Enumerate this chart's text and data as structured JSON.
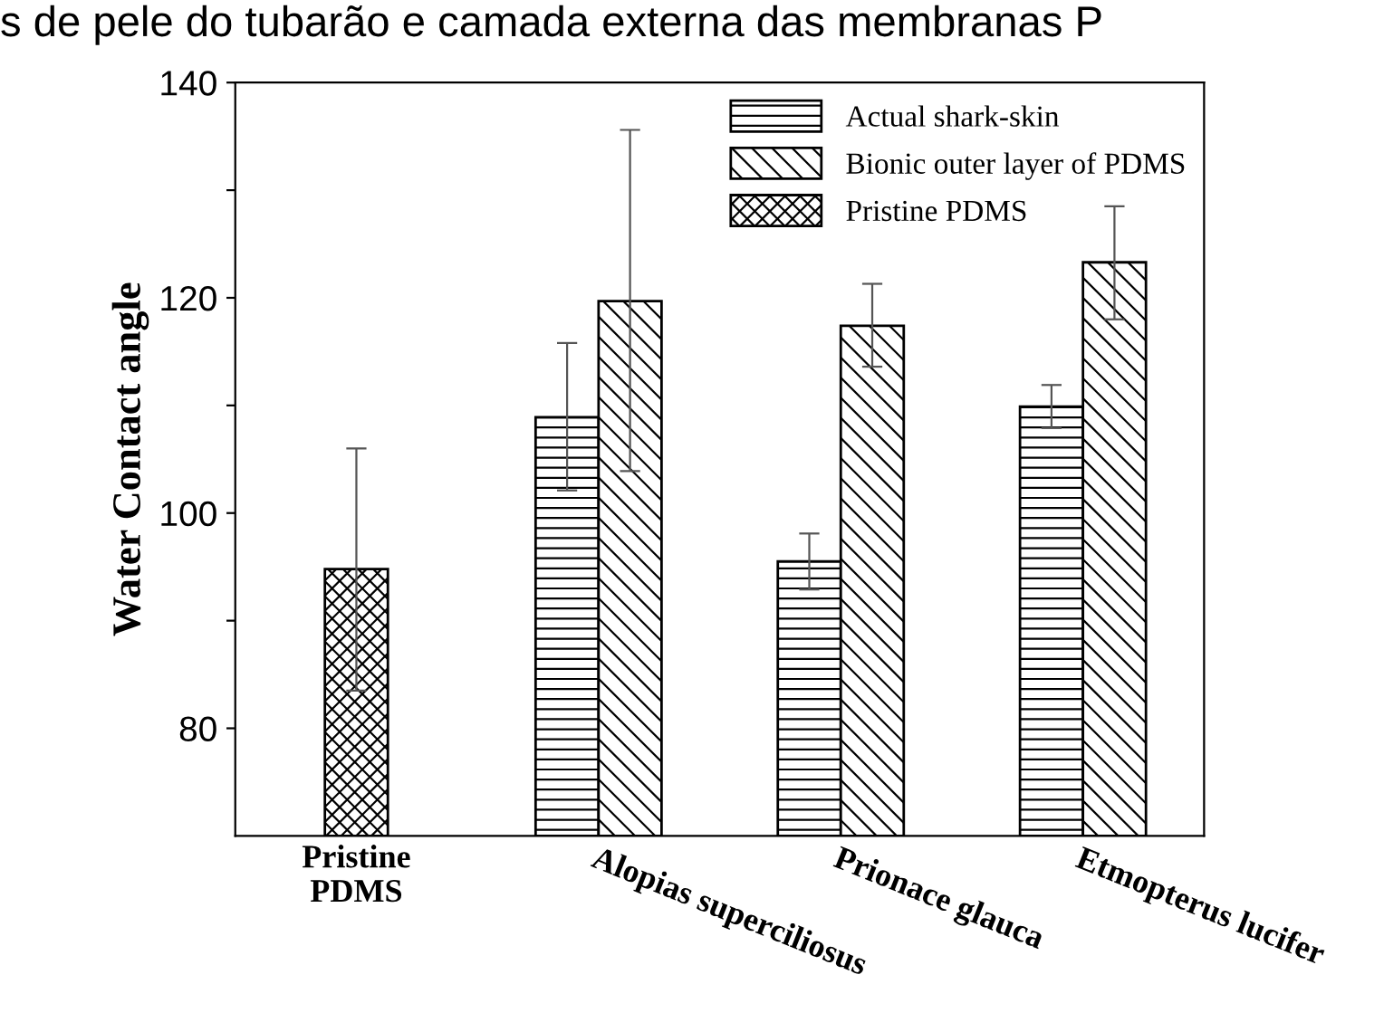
{
  "chart_data": {
    "type": "bar",
    "title": "s de pele do tubarão e camada externa das membranas P",
    "ylabel": "Water Contact angle",
    "categories": [
      "Pristine\nPDMS",
      "Alopias superciliosus",
      "Prionace glauca",
      "Etmopterus lucifer"
    ],
    "series": [
      {
        "name": "Actual shark-skin",
        "color": "#000000",
        "values": [
          null,
          108.9,
          95.5,
          109.9
        ],
        "errors": [
          null,
          [
            102.1,
            115.8
          ],
          [
            92.9,
            98.1
          ],
          [
            107.9,
            111.9
          ]
        ]
      },
      {
        "name": "Bionic outer layer of PDMS",
        "color": "#000000",
        "values": [
          null,
          119.7,
          117.4,
          123.3
        ],
        "errors": [
          null,
          [
            103.9,
            135.6
          ],
          [
            113.6,
            121.3
          ],
          [
            118.0,
            128.5
          ]
        ]
      },
      {
        "name": "Pristine PDMS",
        "color": "#000000",
        "values": [
          94.8,
          null,
          null,
          null
        ],
        "errors": [
          [
            83.5,
            106.0
          ],
          null,
          null,
          null
        ]
      }
    ],
    "ylim": [
      70,
      140
    ],
    "yticks": [
      80,
      {
        "value": 90,
        "label": null
      },
      100,
      {
        "value": 110,
        "label": null
      },
      120,
      {
        "value": 130,
        "label": null
      },
      140
    ],
    "legend": "top right",
    "grid": false
  }
}
